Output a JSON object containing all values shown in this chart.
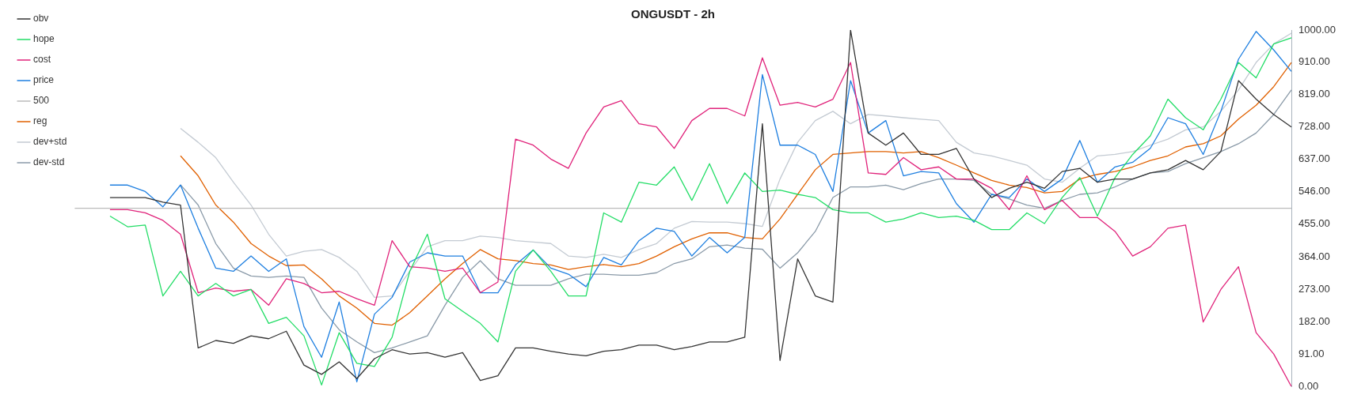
{
  "chart_data": {
    "type": "line",
    "title": "ONGUSDT - 2h",
    "categories": [
      null,
      null,
      null,
      null,
      null,
      null,
      null,
      null,
      null,
      null,
      null,
      null,
      null,
      null,
      null,
      null,
      null,
      null,
      null,
      null,
      null,
      null,
      null,
      null,
      null,
      null,
      null,
      null,
      null,
      null,
      null,
      null,
      null,
      null,
      null,
      null,
      null,
      null,
      null,
      null,
      null,
      null,
      null,
      null,
      null,
      null,
      null,
      null,
      null,
      null,
      null,
      null,
      null,
      null,
      null,
      null,
      null,
      null,
      null,
      null,
      null,
      null,
      null,
      null,
      null,
      null,
      null,
      null,
      null,
      null
    ],
    "ylim": [
      0,
      1000
    ],
    "yticks": [
      {
        "value": 0,
        "label": "0.00"
      },
      {
        "value": 91,
        "label": "91.00"
      },
      {
        "value": 182,
        "label": "182.00"
      },
      {
        "value": 273,
        "label": "273.00"
      },
      {
        "value": 364,
        "label": "364.00"
      },
      {
        "value": 455,
        "label": "455.00"
      },
      {
        "value": 546,
        "label": "546.00"
      },
      {
        "value": 637,
        "label": "637.00"
      },
      {
        "value": 728,
        "label": "728.00"
      },
      {
        "value": 819,
        "label": "819.00"
      },
      {
        "value": 910,
        "label": "910.00"
      },
      {
        "value": 1000,
        "label": "1000.00"
      }
    ],
    "tick_labels": "y",
    "grid": false,
    "legend": "top left",
    "marker": "none",
    "line_style": "solid",
    "series": [
      {
        "name": "obv",
        "color": "#333333",
        "values": [
          null,
          null,
          530,
          530,
          530,
          517,
          509,
          108,
          129,
          121,
          142,
          134,
          155,
          60,
          34,
          69,
          22,
          78,
          103,
          91,
          95,
          82,
          95,
          17,
          30,
          108,
          108,
          99,
          91,
          86,
          99,
          103,
          116,
          116,
          103,
          112,
          125,
          125,
          138,
          737,
          73,
          358,
          254,
          237,
          1000,
          711,
          677,
          711,
          651,
          651,
          668,
          582,
          530,
          556,
          573,
          556,
          603,
          612,
          573,
          582,
          582,
          599,
          608,
          634,
          608,
          659,
          858,
          806,
          763,
          728
        ]
      },
      {
        "name": "hope",
        "color": "#22dd66",
        "values": [
          null,
          null,
          478,
          448,
          453,
          254,
          323,
          254,
          289,
          254,
          272,
          177,
          194,
          142,
          4,
          151,
          65,
          56,
          138,
          323,
          427,
          246,
          211,
          177,
          125,
          323,
          383,
          323,
          254,
          254,
          487,
          461,
          573,
          565,
          616,
          522,
          625,
          513,
          599,
          547,
          551,
          539,
          530,
          496,
          487,
          487,
          461,
          470,
          487,
          474,
          478,
          466,
          440,
          440,
          487,
          457,
          530,
          586,
          478,
          586,
          651,
          703,
          806,
          754,
          720,
          806,
          909,
          866,
          961,
          978
        ]
      },
      {
        "name": "cost",
        "color": "#e0227a",
        "values": [
          null,
          null,
          496,
          496,
          487,
          466,
          427,
          263,
          276,
          267,
          272,
          228,
          302,
          289,
          263,
          267,
          246,
          228,
          409,
          336,
          332,
          323,
          332,
          263,
          293,
          694,
          677,
          638,
          612,
          711,
          784,
          802,
          737,
          728,
          668,
          746,
          780,
          780,
          759,
          922,
          789,
          797,
          784,
          806,
          909,
          599,
          595,
          642,
          608,
          616,
          582,
          582,
          556,
          496,
          591,
          496,
          522,
          474,
          474,
          435,
          366,
          392,
          444,
          453,
          181,
          272,
          336,
          151,
          91,
          0
        ]
      },
      {
        "name": "price",
        "color": "#1e7fe0",
        "values": [
          null,
          null,
          565,
          565,
          547,
          504,
          565,
          444,
          332,
          323,
          366,
          323,
          358,
          168,
          82,
          237,
          13,
          203,
          250,
          349,
          375,
          366,
          366,
          263,
          263,
          341,
          383,
          332,
          315,
          280,
          362,
          341,
          409,
          444,
          435,
          366,
          418,
          375,
          418,
          875,
          677,
          677,
          651,
          547,
          858,
          711,
          746,
          591,
          603,
          599,
          513,
          461,
          539,
          530,
          582,
          547,
          582,
          690,
          573,
          616,
          629,
          668,
          754,
          737,
          651,
          772,
          918,
          996,
          944,
          884
        ]
      },
      {
        "name": "500",
        "color": "#bbbbbb",
        "values": [
          500,
          500,
          500,
          500,
          500,
          500,
          500,
          500,
          500,
          500,
          500,
          500,
          500,
          500,
          500,
          500,
          500,
          500,
          500,
          500,
          500,
          500,
          500,
          500,
          500,
          500,
          500,
          500,
          500,
          500,
          500,
          500,
          500,
          500,
          500,
          500,
          500,
          500,
          500,
          500,
          500,
          500,
          500,
          500,
          500,
          500,
          500,
          500,
          500,
          500,
          500,
          500,
          500,
          500,
          500,
          500,
          500,
          500,
          500,
          500,
          500,
          500,
          500,
          500,
          500,
          500,
          500,
          500,
          500,
          500
        ]
      },
      {
        "name": "reg",
        "color": "#e06000",
        "values": [
          null,
          null,
          null,
          null,
          null,
          null,
          647,
          591,
          509,
          461,
          401,
          366,
          339,
          341,
          302,
          254,
          220,
          177,
          172,
          207,
          254,
          302,
          345,
          384,
          358,
          353,
          345,
          341,
          328,
          336,
          342,
          336,
          345,
          366,
          392,
          414,
          431,
          431,
          418,
          414,
          470,
          539,
          608,
          651,
          655,
          659,
          659,
          655,
          659,
          642,
          621,
          599,
          578,
          565,
          558,
          543,
          547,
          582,
          595,
          603,
          616,
          634,
          647,
          672,
          681,
          703,
          750,
          789,
          841,
          909
        ]
      },
      {
        "name": "dev+std",
        "color": "#c3cad2",
        "values": [
          null,
          null,
          null,
          null,
          null,
          null,
          724,
          685,
          642,
          573,
          509,
          427,
          366,
          379,
          384,
          362,
          323,
          250,
          254,
          323,
          392,
          409,
          409,
          422,
          418,
          409,
          405,
          401,
          366,
          362,
          371,
          362,
          384,
          401,
          444,
          463,
          461,
          461,
          457,
          449,
          582,
          685,
          746,
          772,
          737,
          763,
          759,
          754,
          750,
          746,
          685,
          655,
          647,
          634,
          621,
          582,
          573,
          612,
          647,
          651,
          659,
          677,
          694,
          720,
          728,
          772,
          832,
          909,
          961,
          991
        ]
      },
      {
        "name": "dev-std",
        "color": "#8a9aa8",
        "values": [
          null,
          null,
          null,
          null,
          null,
          null,
          566,
          509,
          401,
          332,
          310,
          306,
          310,
          306,
          220,
          159,
          125,
          95,
          108,
          125,
          142,
          228,
          306,
          353,
          302,
          284,
          284,
          284,
          302,
          315,
          315,
          312,
          312,
          319,
          345,
          358,
          392,
          397,
          388,
          385,
          332,
          375,
          435,
          530,
          560,
          560,
          565,
          552,
          569,
          582,
          582,
          578,
          539,
          526,
          509,
          500,
          522,
          539,
          543,
          560,
          582,
          599,
          603,
          625,
          642,
          659,
          681,
          711,
          763,
          832
        ]
      }
    ]
  }
}
